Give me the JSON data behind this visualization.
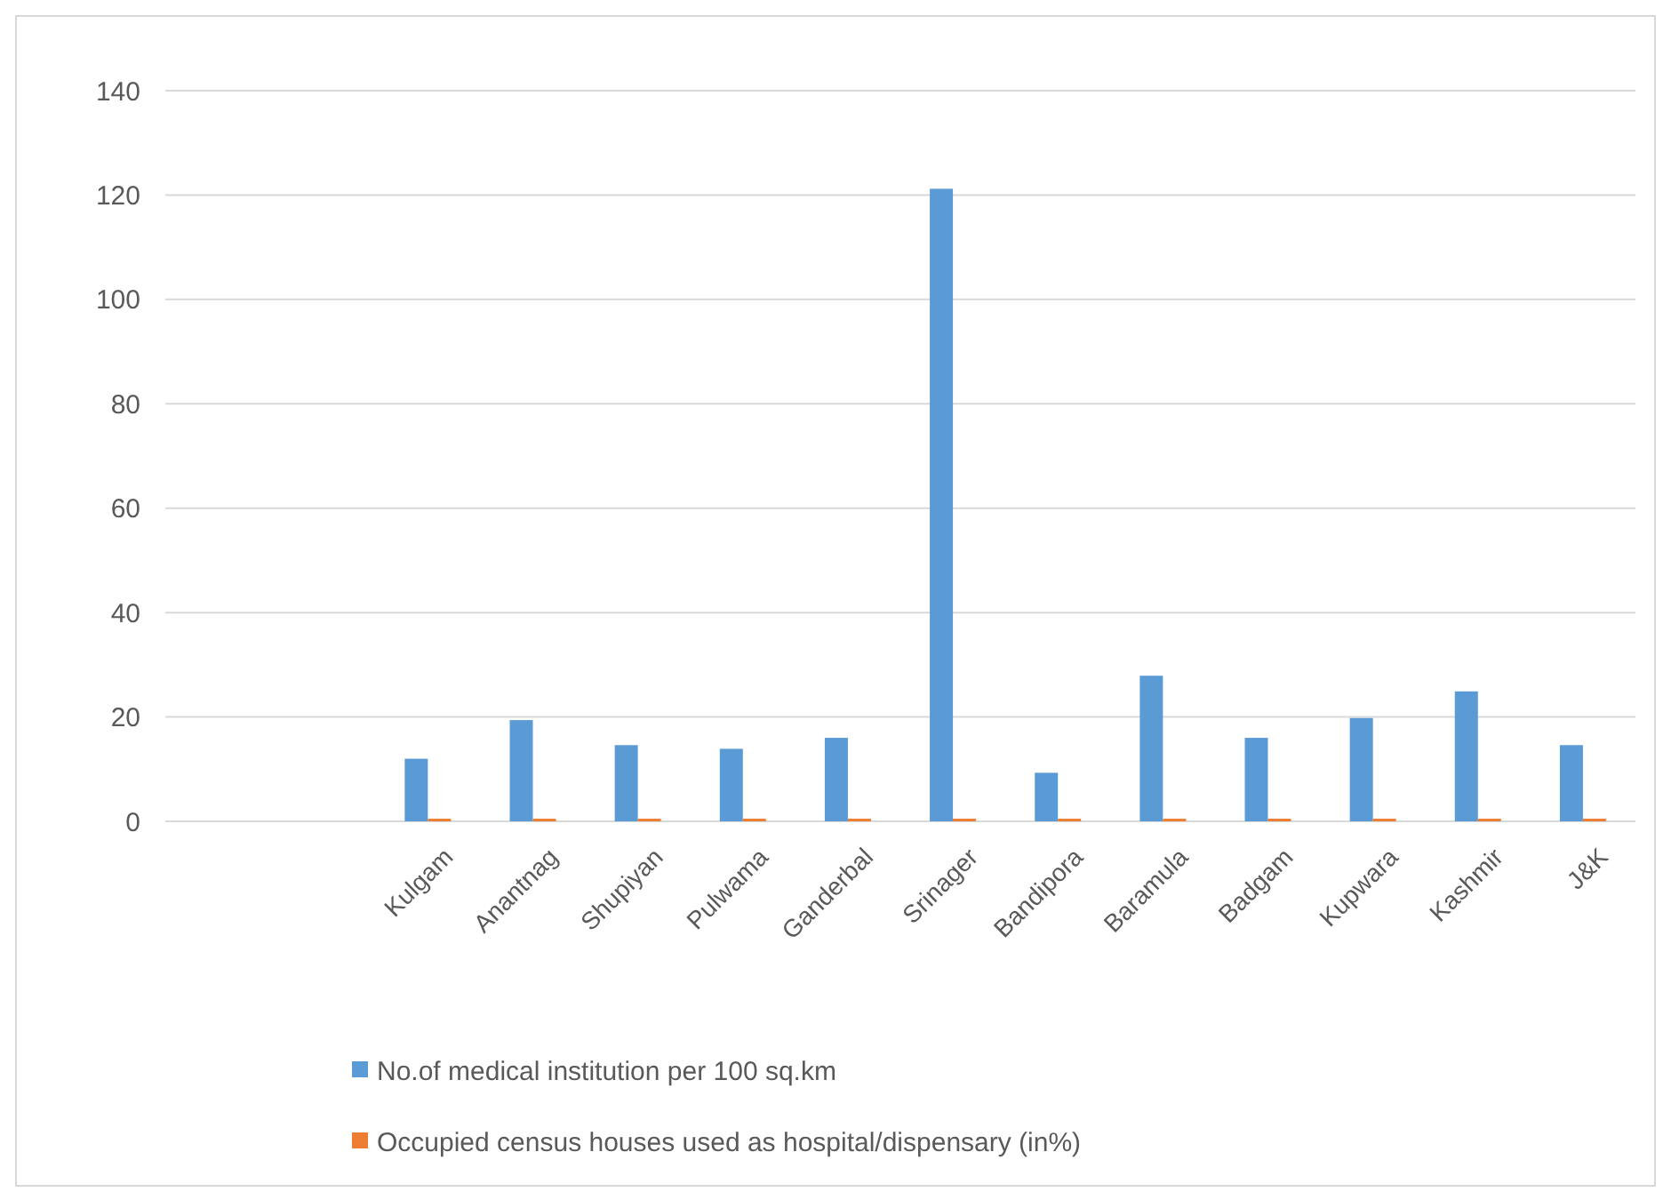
{
  "chart_data": {
    "type": "bar",
    "categories": [
      null,
      null,
      "Kulgam",
      "Anantnag",
      "Shupiyan",
      "Pulwama",
      "Ganderbal",
      "Srinager",
      "Bandipora",
      "Baramula",
      "Badgam",
      "Kupwara",
      "Kashmir",
      "J&K"
    ],
    "series": [
      {
        "name": "No.of medical institution per 100 sq.km",
        "color": "#5b9bd5",
        "values": [
          null,
          null,
          12,
          19.4,
          14.6,
          13.9,
          16,
          121.2,
          9.3,
          27.9,
          16,
          19.8,
          24.9,
          14.6
        ]
      },
      {
        "name": "Occupied census houses used as hospital/dispensary (in%)",
        "color": "#ed7d31",
        "values": [
          null,
          null,
          0.5,
          0.5,
          0.5,
          0.5,
          0.5,
          0.5,
          0.5,
          0.5,
          0.5,
          0.5,
          0.5,
          0.5
        ]
      }
    ],
    "ylim": [
      0,
      140
    ],
    "yticks": [
      0,
      20,
      40,
      60,
      80,
      100,
      120,
      140
    ],
    "grid": "y",
    "legend": "bottom"
  }
}
